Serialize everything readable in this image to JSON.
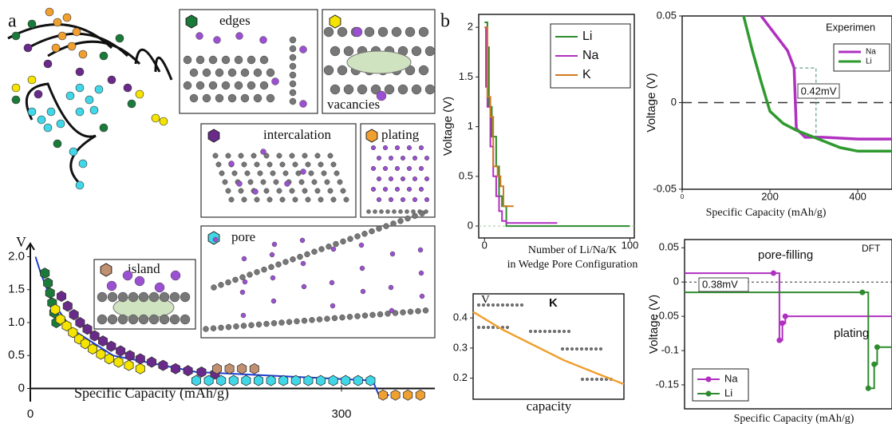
{
  "figure": {
    "panel_labels": [
      "a",
      "b"
    ],
    "insets": [
      "edges",
      "vacancies",
      "intercalation",
      "plating",
      "island",
      "pore"
    ]
  },
  "chart_data": [
    {
      "type": "scatter",
      "ylabel": "V",
      "xlabel": "Specific Capacity (mAh/g)",
      "xlim": [
        0,
        390
      ],
      "ylim": [
        -0.2,
        2.2
      ],
      "xticks": [
        0,
        300
      ],
      "yticks": [
        0,
        0.5,
        {
          "value": 1.0,
          "label": "1.0"
        },
        1.5,
        {
          "value": 2.0,
          "label": "2.0"
        }
      ],
      "series": [
        {
          "marker": "line",
          "color": "#1f3fd0",
          "x": [
            5,
            10,
            20,
            40,
            80,
            160,
            330,
            336,
            346
          ],
          "values": [
            2.0,
            1.75,
            1.35,
            0.9,
            0.5,
            0.25,
            0.12,
            -0.1,
            -0.1
          ]
        },
        {
          "marker": "hexagon",
          "color": "#1a7a3a",
          "x": [
            14,
            17,
            19,
            21,
            23,
            25
          ],
          "values": [
            1.75,
            1.6,
            1.45,
            1.3,
            1.15,
            1.0
          ]
        },
        {
          "marker": "hexagon",
          "color": "#f5e400",
          "x": [
            24,
            29,
            35,
            41,
            47,
            53,
            60,
            68,
            76,
            85,
            95,
            106
          ],
          "values": [
            1.2,
            1.05,
            0.95,
            0.85,
            0.75,
            0.68,
            0.6,
            0.52,
            0.45,
            0.4,
            0.35,
            0.3
          ]
        },
        {
          "marker": "hexagon",
          "color": "#6a2a8a",
          "x": [
            30,
            36,
            42,
            48,
            55,
            62,
            70,
            78,
            87,
            96,
            106,
            117,
            128,
            140,
            152,
            165,
            178
          ],
          "values": [
            1.4,
            1.25,
            1.12,
            1.0,
            0.9,
            0.8,
            0.72,
            0.64,
            0.57,
            0.5,
            0.45,
            0.4,
            0.35,
            0.3,
            0.27,
            0.25,
            0.22
          ]
        },
        {
          "marker": "hexagon",
          "color": "#c09070",
          "x": [
            180,
            192,
            204,
            216
          ],
          "values": [
            0.3,
            0.3,
            0.3,
            0.3
          ]
        },
        {
          "marker": "hexagon",
          "color": "#40d8e8",
          "x": [
            160,
            172,
            184,
            196,
            208,
            220,
            232,
            244,
            256,
            268,
            280,
            292,
            304,
            316,
            328
          ],
          "values": [
            0.12,
            0.12,
            0.12,
            0.12,
            0.12,
            0.12,
            0.12,
            0.12,
            0.12,
            0.12,
            0.12,
            0.12,
            0.12,
            0.12,
            0.12
          ]
        },
        {
          "marker": "hexagon",
          "color": "#f0a030",
          "x": [
            340,
            352,
            364,
            376
          ],
          "values": [
            -0.1,
            -0.1,
            -0.1,
            -0.1
          ]
        }
      ]
    },
    {
      "type": "line",
      "step": true,
      "legend": "upper right",
      "ylabel": "Voltage (V)",
      "xlabel": [
        "Number of Li/Na/K",
        "in Wedge Pore Configuration"
      ],
      "xlim": [
        -4,
        103
      ],
      "ylim": [
        -0.12,
        2.13
      ],
      "xticks": [
        0,
        100
      ],
      "yticks": [
        0,
        0.5,
        1,
        1.5,
        2
      ],
      "series": [
        {
          "name": "Li",
          "color": "#2e8b2e",
          "x": [
            0,
            2,
            3,
            5,
            8,
            10,
            12,
            15,
            20,
            100
          ],
          "values": [
            2.05,
            1.8,
            1.2,
            0.9,
            0.6,
            0.3,
            0.2,
            0,
            0,
            0
          ]
        },
        {
          "name": "Na",
          "color": "#b030c0",
          "x": [
            0,
            1,
            2,
            4,
            6,
            8,
            10,
            12,
            15,
            50
          ],
          "values": [
            2.0,
            1.4,
            1.2,
            0.8,
            0.5,
            0.3,
            0.15,
            0.05,
            0.03,
            0.03
          ]
        },
        {
          "name": "K",
          "color": "#d07a20",
          "x": [
            0,
            2,
            4,
            6,
            9,
            11,
            13,
            16,
            20
          ],
          "values": [
            2.0,
            1.3,
            1.1,
            0.6,
            0.5,
            0.4,
            0.2,
            0.2,
            0.2
          ]
        }
      ]
    },
    {
      "type": "line",
      "title": "Experimen",
      "legend": "upper right",
      "ylabel": "Voltage (V)",
      "xlabel": "Specific Capacity (mAh/g)",
      "xlim": [
        0,
        478
      ],
      "ylim": [
        -0.05,
        0.05
      ],
      "xticks": [
        0,
        200,
        400
      ],
      "yticks": [
        -0.05,
        0,
        0.05
      ],
      "annotations": [
        "0.42mV"
      ],
      "series": [
        {
          "name": "Na",
          "color": "#b030c0",
          "x": [
            180,
            210,
            240,
            255,
            260,
            280,
            320,
            400,
            478
          ],
          "values": [
            0.05,
            0.04,
            0.03,
            0.02,
            -0.015,
            -0.02,
            -0.02,
            -0.021,
            -0.021
          ]
        },
        {
          "name": "Li",
          "color": "#2e9a2e",
          "x": [
            140,
            160,
            180,
            200,
            230,
            260,
            300,
            360,
            400,
            478
          ],
          "values": [
            0.05,
            0.03,
            0.012,
            -0.005,
            -0.012,
            -0.016,
            -0.02,
            -0.026,
            -0.028,
            -0.028
          ]
        }
      ]
    },
    {
      "type": "line",
      "step": true,
      "marker": "line-dot",
      "title": "DFT",
      "legend": "lower left",
      "ylabel": "Voltage (V)",
      "xlabel": "Specific Capacity (mAh/g)",
      "xlim": [
        0,
        70
      ],
      "ylim": [
        -0.185,
        0.062
      ],
      "yticks": [
        0.05,
        0,
        -0.05,
        -0.1,
        -0.15
      ],
      "annotations": [
        "pore-filling",
        "0.38mV",
        "plating"
      ],
      "series": [
        {
          "name": "Na",
          "color": "#b030c0",
          "x": [
            0,
            30,
            32,
            33,
            34,
            70
          ],
          "values": [
            0.013,
            0.013,
            -0.085,
            -0.06,
            -0.05,
            -0.05
          ]
        },
        {
          "name": "Li",
          "color": "#2e8b2e",
          "x": [
            0,
            60,
            62,
            64,
            65,
            70
          ],
          "values": [
            -0.015,
            -0.015,
            -0.155,
            -0.12,
            -0.095,
            -0.095
          ]
        }
      ]
    },
    {
      "type": "line",
      "title": "K",
      "ylabel": "V",
      "xlabel": "capacity",
      "xlim": [
        0,
        1
      ],
      "ylim": [
        0.13,
        0.48
      ],
      "yticks": [
        0.2,
        0.3,
        0.4
      ],
      "series": [
        {
          "color": "#f0a030",
          "x": [
            0,
            0.2,
            0.4,
            0.6,
            0.8,
            1.0
          ],
          "values": [
            0.42,
            0.36,
            0.31,
            0.26,
            0.22,
            0.18
          ]
        }
      ]
    }
  ]
}
